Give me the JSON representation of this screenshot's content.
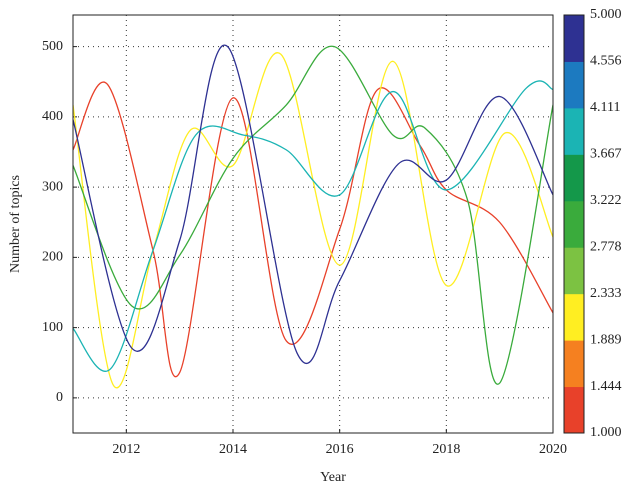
{
  "chart_data": {
    "type": "line",
    "x_label": "Year",
    "y_label": "Number of topics",
    "xlim": [
      2011,
      2020
    ],
    "ylim": [
      -50,
      545
    ],
    "xticks": [
      2012,
      2014,
      2016,
      2018,
      2020
    ],
    "yticks": [
      0,
      100,
      200,
      300,
      400,
      500
    ],
    "grid": true,
    "series": [
      {
        "color": "#e8412a",
        "x": [
          2011,
          2011.65,
          2012.5,
          2013,
          2014,
          2015,
          2016,
          2016.7,
          2017.5,
          2018,
          2019,
          2020
        ],
        "values": [
          353,
          446,
          210,
          36,
          427,
          81,
          240,
          438,
          360,
          296,
          250,
          121
        ]
      },
      {
        "color": "#ffee22",
        "x": [
          2011,
          2011.75,
          2012.5,
          2013.2,
          2014,
          2014.9,
          2016,
          2017,
          2018,
          2019.1,
          2020
        ],
        "values": [
          417,
          19,
          210,
          381,
          331,
          489,
          189,
          479,
          160,
          377,
          229
        ]
      },
      {
        "color": "#3aab3c",
        "x": [
          2011,
          2012.1,
          2013,
          2014,
          2015,
          2015.9,
          2017,
          2017.6,
          2018.4,
          2019,
          2020
        ],
        "values": [
          331,
          131,
          203,
          341,
          417,
          500,
          374,
          384,
          281,
          21,
          417
        ]
      },
      {
        "color": "#1bb4b4",
        "x": [
          2011,
          2011.7,
          2012.5,
          2013.3,
          2014.2,
          2015,
          2016,
          2017,
          2018,
          2019.5,
          2020
        ],
        "values": [
          99,
          41,
          210,
          374,
          374,
          353,
          289,
          436,
          296,
          441,
          439
        ]
      },
      {
        "color": "#2e3192",
        "x": [
          2011,
          2012.1,
          2013,
          2013.9,
          2015.2,
          2016,
          2017.1,
          2018,
          2019,
          2020
        ],
        "values": [
          396,
          71,
          224,
          500,
          64,
          167,
          333,
          310,
          429,
          289
        ]
      }
    ],
    "colorbar": {
      "labels": [
        "1.000",
        "1.444",
        "1.889",
        "2.333",
        "2.778",
        "3.222",
        "3.667",
        "4.111",
        "4.556",
        "5.000"
      ],
      "colors": [
        "#e8412a",
        "#f58020",
        "#ffee22",
        "#7cc242",
        "#3aab3c",
        "#14984a",
        "#1bb4b4",
        "#1c7ac0",
        "#2e3192"
      ]
    }
  }
}
